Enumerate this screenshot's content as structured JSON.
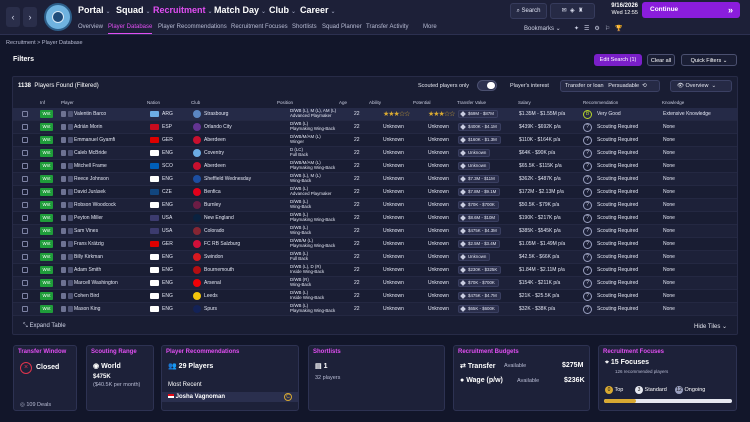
{
  "nav": {
    "main": [
      "Portal",
      "Squad",
      "Recruitment",
      "Match Day",
      "Club",
      "Career"
    ],
    "active_main": "Recruitment",
    "sub": [
      "Overview",
      "Player Database",
      "Player Recommendations",
      "Recruitment Focuses",
      "Shortlists",
      "Squad Planner",
      "Transfer Activity",
      "More"
    ],
    "active_sub": "Player Database",
    "search_label": "Search",
    "date": "9/16/2026",
    "time": "Wed  12:55",
    "continue_label": "Continue",
    "bookmarks_label": "Bookmarks"
  },
  "breadcrumb": "Recruitment  >  Player Database",
  "filters": {
    "title": "Filters",
    "edit_search": "Edit Search (1)",
    "clear_all": "Clear all",
    "quick_filters": "Quick Filters"
  },
  "table": {
    "count_label": "1138",
    "count_text": "Players Found (Filtered)",
    "scouted_only": "Scouted players only",
    "players_interest": "Player's interest",
    "transfer_loan": "Transfer or loan",
    "persuadable": "Persuadable",
    "overview": "Overview",
    "headers": [
      "Inf",
      "Player",
      "Nation",
      "Club",
      "Position",
      "Age",
      "Ability",
      "Potential",
      "Transfer Value",
      "Salary",
      "Recommendation",
      "Knowledge"
    ],
    "rows": [
      {
        "status": "Wnt",
        "name": "Valentin Barco",
        "nat": "ARG",
        "club": "Strasbourg",
        "pos1": "D/WB (L), M (L), AM (L)",
        "pos2": "Advanced Playmaker",
        "age": "22",
        "ability": "★★★☆☆",
        "potential": "★★★☆☆",
        "tv": "$69M - $87M",
        "salary": "$1.35M - $1.55M p/a",
        "rec_icon": "B",
        "rec": "Very Good",
        "know": "Extensive Knowledge",
        "flag": "#6cace4",
        "badge": "#5b86c2"
      },
      {
        "status": "Wnt",
        "name": "Adrián Morin",
        "nat": "ESP",
        "club": "Orlando City",
        "pos1": "D/WB (L)",
        "pos2": "Playmaking Wing-Back",
        "age": "22",
        "ability": "Unknown",
        "potential": "Unknown",
        "tv": "$400K - $4.1M",
        "salary": "$439K - $692K p/a",
        "rec_icon": "?",
        "rec": "Scouting Required",
        "know": "None",
        "flag": "#c60b1e",
        "badge": "#633492"
      },
      {
        "status": "Wnt",
        "name": "Emmanuel Gyamfi",
        "nat": "GER",
        "club": "Aberdeen",
        "pos1": "D/WB/M/AM (L)",
        "pos2": "Winger",
        "age": "22",
        "ability": "Unknown",
        "potential": "Unknown",
        "tv": "$160K - $1.3M",
        "salary": "$110K - $164K p/a",
        "rec_icon": "?",
        "rec": "Scouting Required",
        "know": "None",
        "flag": "#dd0000",
        "badge": "#c8102e"
      },
      {
        "status": "Wnt",
        "name": "Caleb McBride",
        "nat": "ENG",
        "club": "Coventry",
        "pos1": "D (LC)",
        "pos2": "Full Back",
        "age": "22",
        "ability": "Unknown",
        "potential": "Unknown",
        "tv": "Unknown",
        "salary": "$64K - $90K p/a",
        "rec_icon": "?",
        "rec": "Scouting Required",
        "know": "None",
        "flag": "#ffffff",
        "badge": "#6cace4"
      },
      {
        "status": "Wnt",
        "name": "Mitchell Frame",
        "nat": "SCO",
        "club": "Aberdeen",
        "pos1": "D/WB/M/AM (L)",
        "pos2": "Playmaking Wing-Back",
        "age": "22",
        "ability": "Unknown",
        "potential": "Unknown",
        "tv": "Unknown",
        "salary": "$65.5K - $115K p/a",
        "rec_icon": "?",
        "rec": "Scouting Required",
        "know": "None",
        "flag": "#005eb8",
        "badge": "#c8102e"
      },
      {
        "status": "Wnt",
        "name": "Reece Johnson",
        "nat": "ENG",
        "club": "Sheffield Wednesday",
        "pos1": "D/WB (L), M (L)",
        "pos2": "Wing-Back",
        "age": "22",
        "ability": "Unknown",
        "potential": "Unknown",
        "tv": "$7.3M - $11M",
        "salary": "$362K - $487K p/a",
        "rec_icon": "?",
        "rec": "Scouting Required",
        "know": "None",
        "flag": "#ffffff",
        "badge": "#1c4ea1"
      },
      {
        "status": "Wnt",
        "name": "David Jurásek",
        "nat": "CZE",
        "club": "Benfica",
        "pos1": "D/WB (L)",
        "pos2": "Advanced Playmaker",
        "age": "22",
        "ability": "Unknown",
        "potential": "Unknown",
        "tv": "$7.8M - $9.1M",
        "salary": "$172M - $2.13M p/a",
        "rec_icon": "?",
        "rec": "Scouting Required",
        "know": "None",
        "flag": "#11457e",
        "badge": "#e2001a"
      },
      {
        "status": "Wnt",
        "name": "Robson Woodcock",
        "nat": "ENG",
        "club": "Burnley",
        "pos1": "D/WB (L)",
        "pos2": "Wing-Back",
        "age": "22",
        "ability": "Unknown",
        "potential": "Unknown",
        "tv": "$70K - $700K",
        "salary": "$50.5K - $79K p/a",
        "rec_icon": "?",
        "rec": "Scouting Required",
        "know": "None",
        "flag": "#ffffff",
        "badge": "#6c1d45"
      },
      {
        "status": "Wnt",
        "name": "Peyton Miller",
        "nat": "USA",
        "club": "New England",
        "pos1": "D/WB (L)",
        "pos2": "Playmaking Wing-Back",
        "age": "22",
        "ability": "Unknown",
        "potential": "Unknown",
        "tv": "$8.6M - $10M",
        "salary": "$190K - $217K p/a",
        "rec_icon": "?",
        "rec": "Scouting Required",
        "know": "None",
        "flag": "#3c3b6e",
        "badge": "#0a2240"
      },
      {
        "status": "Wnt",
        "name": "Sam Vines",
        "nat": "USA",
        "club": "Colorado",
        "pos1": "D/WB (L)",
        "pos2": "Wing-Back",
        "age": "22",
        "ability": "Unknown",
        "potential": "Unknown",
        "tv": "$475K - $4.3M",
        "salary": "$385K - $545K p/a",
        "rec_icon": "?",
        "rec": "Scouting Required",
        "know": "None",
        "flag": "#3c3b6e",
        "badge": "#862633"
      },
      {
        "status": "Wnt",
        "name": "Frans Krätzig",
        "nat": "GER",
        "club": "FC RB Salzburg",
        "pos1": "D/WB/M (L)",
        "pos2": "Playmaking Wing-Back",
        "age": "22",
        "ability": "Unknown",
        "potential": "Unknown",
        "tv": "$2.5M - $3.4M",
        "salary": "$1.05M - $1.49M p/a",
        "rec_icon": "?",
        "rec": "Scouting Required",
        "know": "None",
        "flag": "#dd0000",
        "badge": "#d0103a"
      },
      {
        "status": "Wnt",
        "name": "Billy Kirkman",
        "nat": "ENG",
        "club": "Swindon",
        "pos1": "D/WB (L)",
        "pos2": "Full Back",
        "age": "22",
        "ability": "Unknown",
        "potential": "Unknown",
        "tv": "Unknown",
        "salary": "$42.5K - $66K p/a",
        "rec_icon": "?",
        "rec": "Scouting Required",
        "know": "None",
        "flag": "#ffffff",
        "badge": "#d71920"
      },
      {
        "status": "Wnt",
        "name": "Adam Smith",
        "nat": "ENG",
        "club": "Bournemouth",
        "pos1": "D/WB (L), D (R)",
        "pos2": "Inside Wing-Back",
        "age": "22",
        "ability": "Unknown",
        "potential": "Unknown",
        "tv": "$230K - $325K",
        "salary": "$1.84M - $2.11M p/a",
        "rec_icon": "?",
        "rec": "Scouting Required",
        "know": "None",
        "flag": "#ffffff",
        "badge": "#b50e12"
      },
      {
        "status": "Wnt",
        "name": "Marcell Washington",
        "nat": "ENG",
        "club": "Arsenal",
        "pos1": "D/WB (R)",
        "pos2": "Wing-Back",
        "age": "22",
        "ability": "Unknown",
        "potential": "Unknown",
        "tv": "$70K - $700K",
        "salary": "$154K - $211K p/a",
        "rec_icon": "?",
        "rec": "Scouting Required",
        "know": "None",
        "flag": "#ffffff",
        "badge": "#ef0107"
      },
      {
        "status": "Wnt",
        "name": "Cohen Bird",
        "nat": "ENG",
        "club": "Leeds",
        "pos1": "D/WB (L)",
        "pos2": "Inside Wing-Back",
        "age": "22",
        "ability": "Unknown",
        "potential": "Unknown",
        "tv": "$475K - $4.7M",
        "salary": "$21K - $25.5K p/a",
        "rec_icon": "?",
        "rec": "Scouting Required",
        "know": "None",
        "flag": "#ffffff",
        "badge": "#f2c40c"
      },
      {
        "status": "Wnt",
        "name": "Mason King",
        "nat": "ENG",
        "club": "Spurs",
        "pos1": "D/WB (L)",
        "pos2": "Playmaking Wing-Back",
        "age": "22",
        "ability": "Unknown",
        "potential": "Unknown",
        "tv": "$65K - $600K",
        "salary": "$32K - $38K p/a",
        "rec_icon": "?",
        "rec": "Scouting Required",
        "know": "None",
        "flag": "#ffffff",
        "badge": "#132257"
      }
    ],
    "expand": "Expand Table",
    "hide_tiles": "Hide Tiles"
  },
  "tiles": {
    "transfer_window": {
      "title": "Transfer Window",
      "status": "Closed",
      "deals": "109  Deals"
    },
    "scouting_range": {
      "title": "Scouting Range",
      "range": "World",
      "cost": "$475K",
      "cost_sub": "($40.5K per month)"
    },
    "recommendations": {
      "title": "Player Recommendations",
      "count": "29 Players",
      "recent_label": "Most Recent",
      "recent_name": "Josha Vagnoman"
    },
    "shortlists": {
      "title": "Shortlists",
      "count": "1",
      "players": "32 players"
    },
    "budgets": {
      "title": "Recruitment Budgets",
      "transfer_label": "Transfer",
      "transfer_avail": "Available",
      "transfer_value": "$275M",
      "wage_label": "Wage (p/w)",
      "wage_avail": "Available",
      "wage_value": "$236K"
    },
    "focuses": {
      "title": "Recruitment Focuses",
      "count": "15 Focuses",
      "sub": "126 recommended players",
      "top": "0",
      "top_label": "Top",
      "standard": "3",
      "standard_label": "Standard",
      "ongoing": "12",
      "ongoing_label": "Ongoing"
    }
  }
}
